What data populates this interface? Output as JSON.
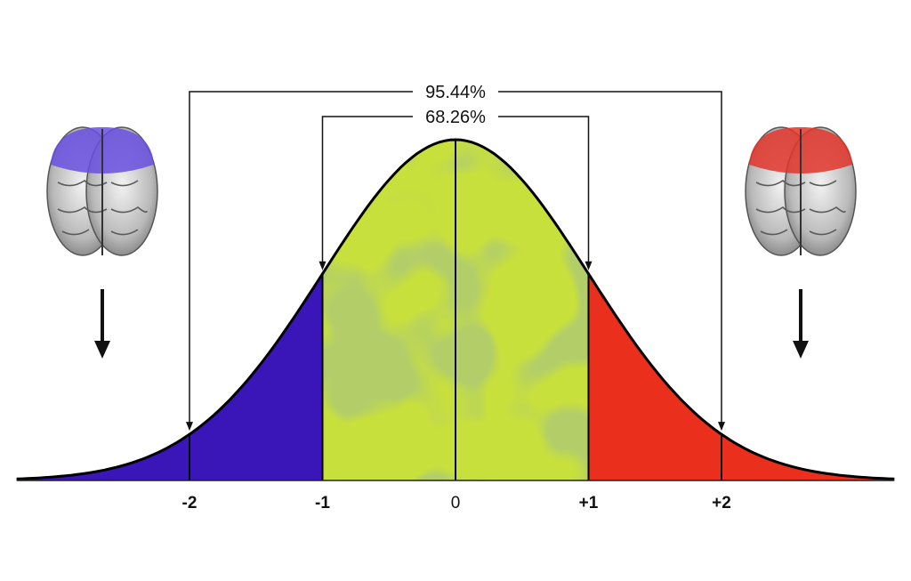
{
  "chart_data": {
    "type": "area",
    "distribution": "normal",
    "x_ticks": [
      {
        "value": -2,
        "label": "-2"
      },
      {
        "value": -1,
        "label": "-1"
      },
      {
        "value": 0,
        "label": "0"
      },
      {
        "value": 1,
        "label": "+1"
      },
      {
        "value": 2,
        "label": "+2"
      }
    ],
    "xlim": [
      -3.3,
      3.3
    ],
    "regions": [
      {
        "from": -3.3,
        "to": -1,
        "color": "#3a16b8"
      },
      {
        "from": -1,
        "to": 1,
        "color": "#c8e03c"
      },
      {
        "from": 1,
        "to": 3.3,
        "color": "#ea2f1d"
      }
    ],
    "annotations": [
      {
        "label": "95.44%",
        "from": -2,
        "to": 2
      },
      {
        "label": "68.26%",
        "from": -1,
        "to": 1
      }
    ]
  },
  "brains": [
    {
      "side": "left",
      "highlight": "#6a4fe0",
      "arrow": "down"
    },
    {
      "side": "right",
      "highlight": "#e2352a",
      "arrow": "down"
    }
  ]
}
